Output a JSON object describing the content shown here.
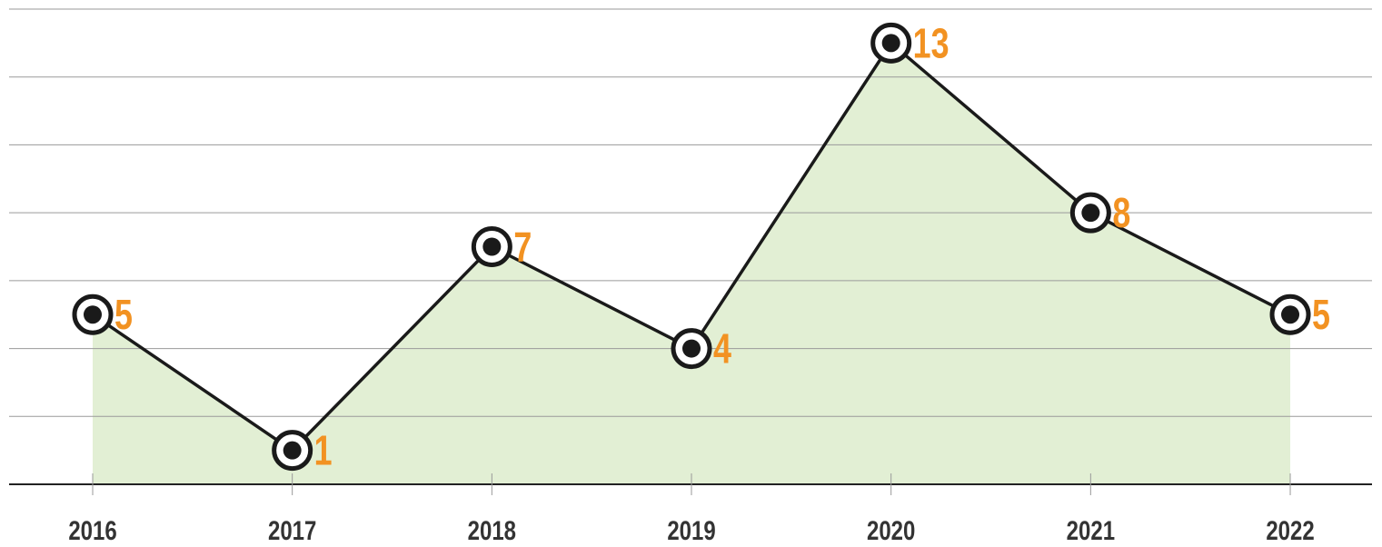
{
  "chart_data": {
    "type": "area",
    "categories": [
      "2016",
      "2017",
      "2018",
      "2019",
      "2020",
      "2021",
      "2022"
    ],
    "values": [
      5,
      1,
      7,
      4,
      13,
      8,
      5
    ],
    "color": "#e2efd4",
    "line_color": "#1a1a1a",
    "label_color": "#f29222",
    "ylim": [
      0,
      14
    ],
    "yticks": [
      0,
      2,
      4,
      6,
      8,
      10,
      12,
      14
    ],
    "grid": true
  }
}
